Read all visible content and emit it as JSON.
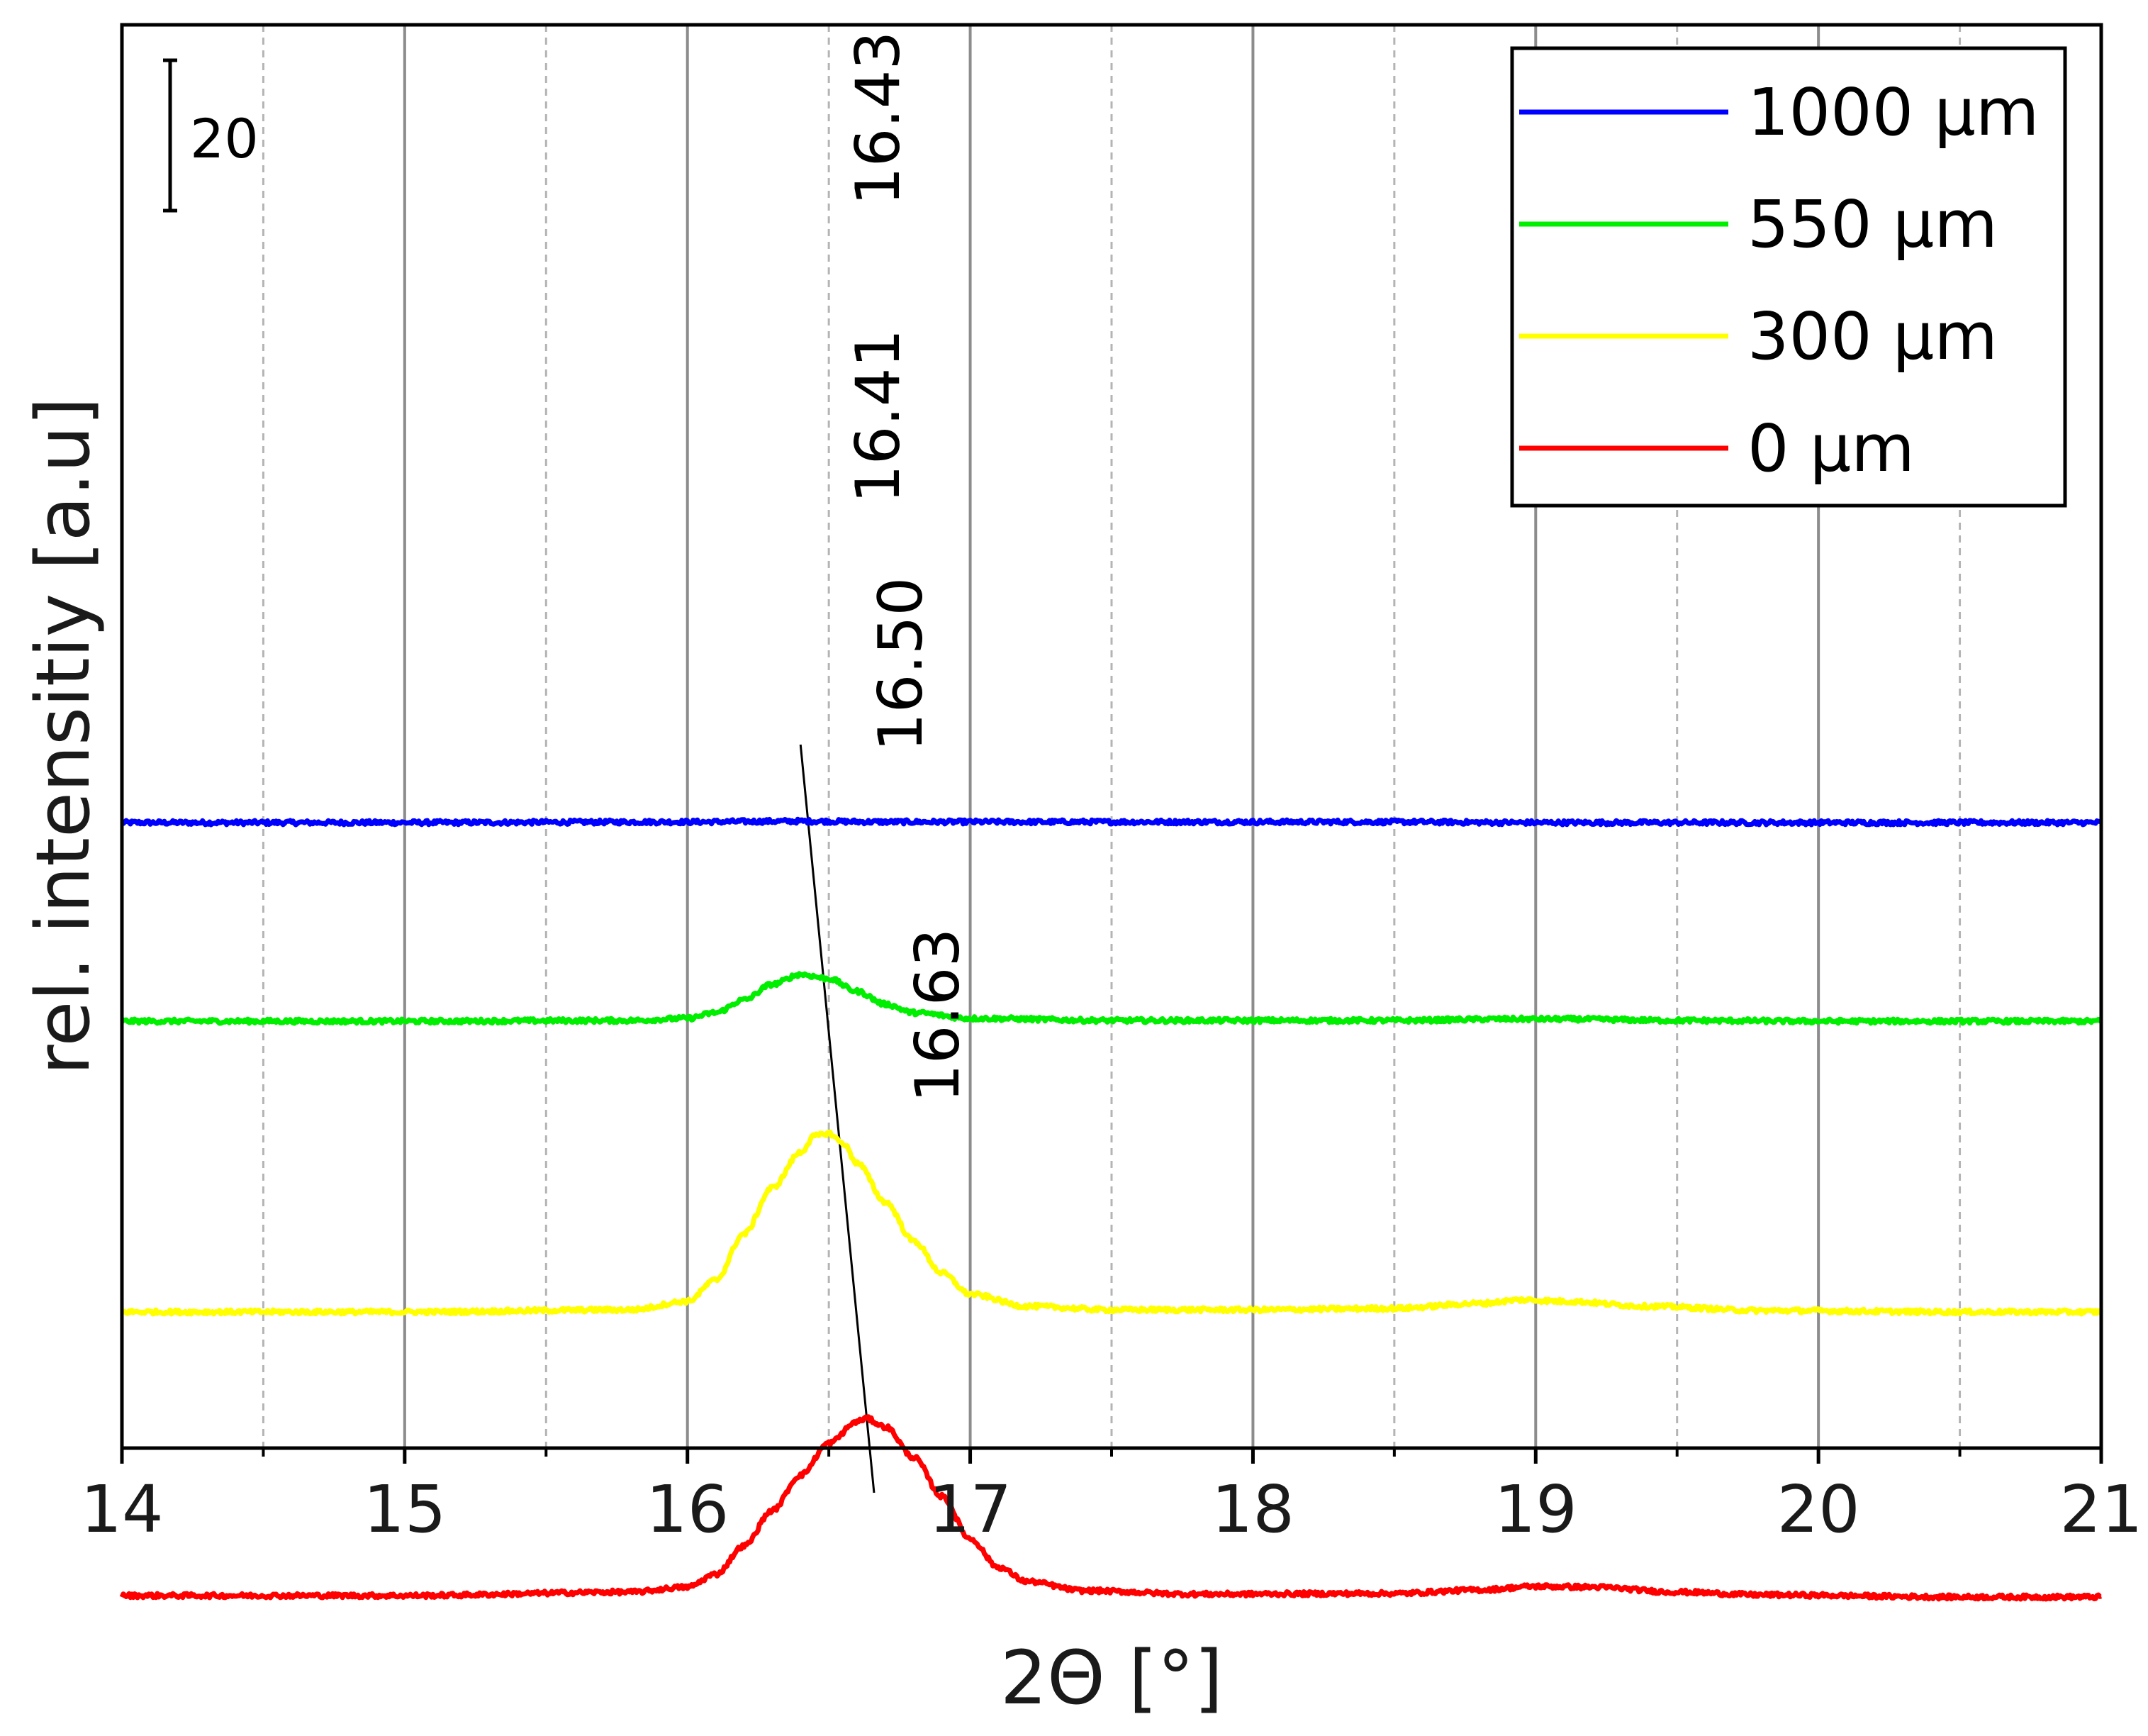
{
  "chart_data": {
    "type": "line",
    "title": "",
    "xlabel": "2Θ [°]",
    "ylabel": "rel. intensitiy [a.u]",
    "xlim": [
      14,
      21
    ],
    "x_ticks": [
      "14",
      "15",
      "16",
      "17",
      "18",
      "19",
      "20",
      "21"
    ],
    "x_minor_ticks": [
      14.5,
      15.5,
      16.5,
      17.5,
      18.5,
      19.5,
      20.5
    ],
    "grid": true,
    "legend_position": "top-right",
    "scale_bar": {
      "label": "20",
      "value": 20
    },
    "series": [
      {
        "name": "1000 µm",
        "color": "#0000ff",
        "offset": 840,
        "points": [
          [
            14.0,
            0
          ],
          [
            15.0,
            0
          ],
          [
            16.0,
            1
          ],
          [
            16.4,
            2
          ],
          [
            16.7,
            1
          ],
          [
            17.5,
            1
          ],
          [
            18.5,
            1
          ],
          [
            19.0,
            0
          ],
          [
            20.0,
            0
          ],
          [
            21.0,
            0
          ]
        ]
      },
      {
        "name": "550 µm",
        "color": "#00ee00",
        "offset": 560,
        "points": [
          [
            14.0,
            0
          ],
          [
            15.0,
            0
          ],
          [
            15.8,
            1
          ],
          [
            16.0,
            4
          ],
          [
            16.1,
            12
          ],
          [
            16.2,
            30
          ],
          [
            16.3,
            52
          ],
          [
            16.4,
            66
          ],
          [
            16.5,
            60
          ],
          [
            16.6,
            42
          ],
          [
            16.7,
            24
          ],
          [
            16.8,
            12
          ],
          [
            17.0,
            4
          ],
          [
            17.5,
            1
          ],
          [
            18.5,
            1
          ],
          [
            18.9,
            3
          ],
          [
            19.1,
            3
          ],
          [
            19.5,
            1
          ],
          [
            20.0,
            0
          ],
          [
            21.0,
            0
          ]
        ]
      },
      {
        "name": "300 µm",
        "color": "#ffff00",
        "offset": 150,
        "points": [
          [
            14.0,
            0
          ],
          [
            15.0,
            0
          ],
          [
            15.8,
            3
          ],
          [
            16.0,
            15
          ],
          [
            16.1,
            45
          ],
          [
            16.2,
            110
          ],
          [
            16.3,
            175
          ],
          [
            16.4,
            225
          ],
          [
            16.45,
            248
          ],
          [
            16.5,
            252
          ],
          [
            16.55,
            238
          ],
          [
            16.6,
            210
          ],
          [
            16.7,
            155
          ],
          [
            16.8,
            100
          ],
          [
            16.9,
            55
          ],
          [
            17.0,
            25
          ],
          [
            17.2,
            8
          ],
          [
            17.5,
            3
          ],
          [
            18.0,
            3
          ],
          [
            18.5,
            5
          ],
          [
            18.8,
            12
          ],
          [
            18.95,
            17
          ],
          [
            19.1,
            15
          ],
          [
            19.4,
            8
          ],
          [
            19.8,
            2
          ],
          [
            20.5,
            0
          ],
          [
            21.0,
            0
          ]
        ]
      },
      {
        "name": "0 µm",
        "color": "#ff0000",
        "offset": -250,
        "points": [
          [
            14.0,
            0
          ],
          [
            15.0,
            0
          ],
          [
            15.8,
            5
          ],
          [
            16.0,
            12
          ],
          [
            16.1,
            30
          ],
          [
            16.2,
            70
          ],
          [
            16.3,
            120
          ],
          [
            16.4,
            170
          ],
          [
            16.5,
            215
          ],
          [
            16.6,
            245
          ],
          [
            16.63,
            250
          ],
          [
            16.7,
            238
          ],
          [
            16.8,
            195
          ],
          [
            16.9,
            140
          ],
          [
            17.0,
            80
          ],
          [
            17.1,
            40
          ],
          [
            17.2,
            20
          ],
          [
            17.4,
            7
          ],
          [
            17.8,
            2
          ],
          [
            18.5,
            3
          ],
          [
            18.8,
            8
          ],
          [
            19.0,
            13
          ],
          [
            19.2,
            12
          ],
          [
            19.5,
            5
          ],
          [
            19.8,
            1
          ],
          [
            20.5,
            -2
          ],
          [
            21.0,
            -2
          ]
        ]
      }
    ],
    "peak_annotations": [
      {
        "series": "1000 µm",
        "x": 16.43,
        "label": "16.43"
      },
      {
        "series": "550 µm",
        "x": 16.41,
        "label": "16.41"
      },
      {
        "series": "300 µm",
        "x": 16.5,
        "label": "16.50"
      },
      {
        "series": "0 µm",
        "x": 16.63,
        "label": "16.63"
      }
    ],
    "guide_line": {
      "from": [
        16.4,
        950
      ],
      "to": [
        16.66,
        -105
      ]
    }
  }
}
